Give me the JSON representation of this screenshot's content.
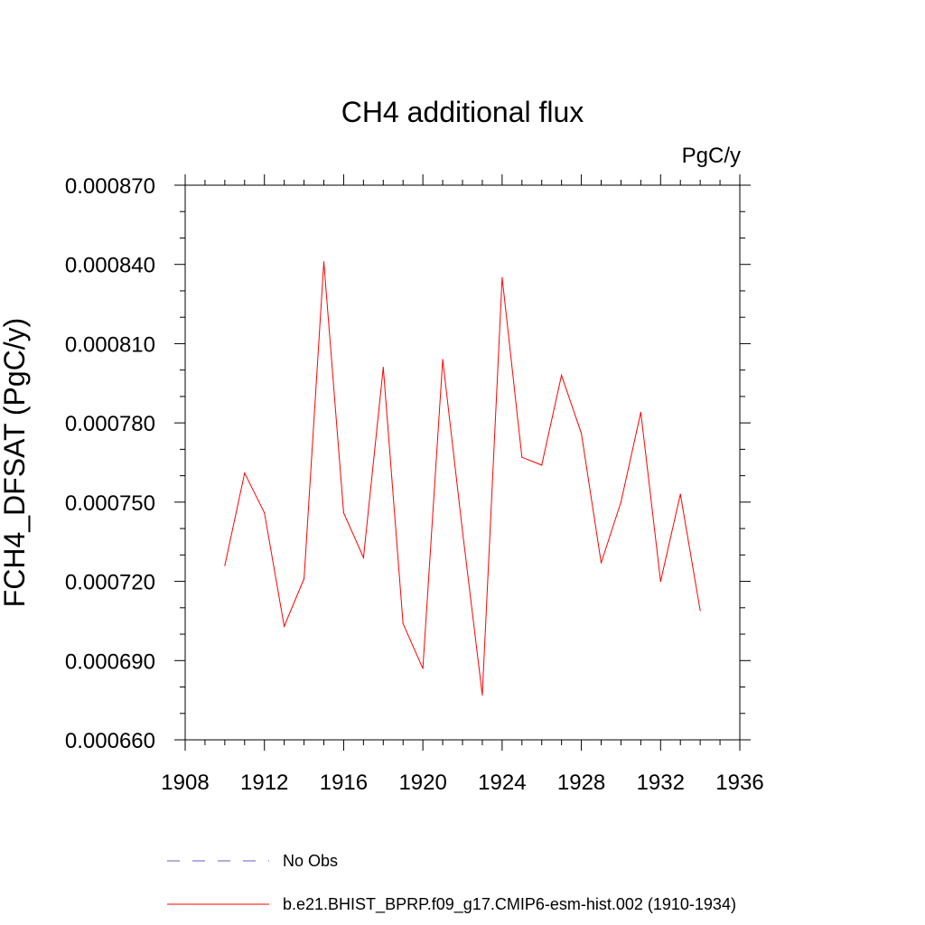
{
  "chart_data": {
    "type": "line",
    "title": "CH4 additional flux",
    "units_label": "PgC/y",
    "ylabel": "FCH4_DFSAT  (PgC/y)",
    "xlabel": "",
    "xlim": [
      1908,
      1936
    ],
    "ylim": [
      0.00066,
      0.00087
    ],
    "x_ticks": [
      "1908",
      "1912",
      "1916",
      "1920",
      "1924",
      "1928",
      "1932",
      "1936"
    ],
    "y_ticks": [
      "0.000660",
      "0.000690",
      "0.000720",
      "0.000750",
      "0.000780",
      "0.000810",
      "0.000840",
      "0.000870"
    ],
    "grid": false,
    "legend_placement": "bottom",
    "series": [
      {
        "name": "b.e21.BHIST_BPRP.f09_g17.CMIP6-esm-hist.002 (1910-1934)",
        "color": "#ff0000",
        "style": "solid",
        "x": [
          1910,
          1911,
          1912,
          1913,
          1914,
          1915,
          1916,
          1917,
          1918,
          1919,
          1920,
          1921,
          1922,
          1923,
          1924,
          1925,
          1926,
          1927,
          1928,
          1929,
          1930,
          1931,
          1932,
          1933,
          1934
        ],
        "y": [
          0.000726,
          0.000761,
          0.000746,
          0.000703,
          0.000721,
          0.000841,
          0.000746,
          0.000729,
          0.000801,
          0.000704,
          0.000687,
          0.000804,
          0.000739,
          0.000677,
          0.000835,
          0.000767,
          0.000764,
          0.000798,
          0.000776,
          0.000727,
          0.00075,
          0.000784,
          0.00072,
          0.000753,
          0.000709
        ]
      }
    ],
    "legend": [
      {
        "label": "No Obs",
        "color": "#6a5acd",
        "style": "dashed"
      },
      {
        "label": "b.e21.BHIST_BPRP.f09_g17.CMIP6-esm-hist.002 (1910-1934)",
        "color": "#ff0000",
        "style": "solid"
      }
    ]
  }
}
